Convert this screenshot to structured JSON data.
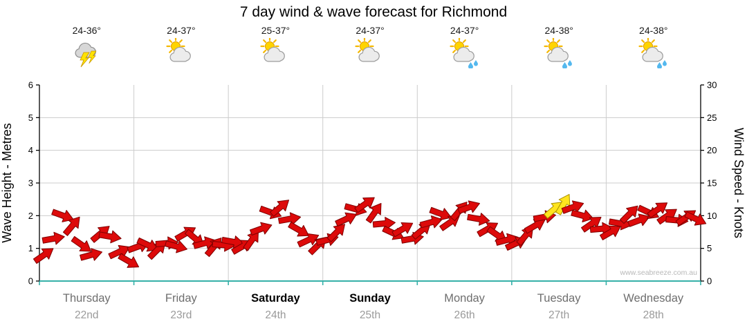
{
  "title": "7 day wind & wave forecast for Richmond",
  "watermark": "www.seabreeze.com.au",
  "colors": {
    "arrow_red": "#dd0a0a",
    "arrow_red_outline": "#7e0000",
    "arrow_yellow": "#ffe41e",
    "arrow_yellow_outline": "#a98f00",
    "grid": "#cccccc",
    "axis_black": "#000000",
    "axis_teal": "#35b0a8",
    "day_name_gray": "#6e6e6e",
    "weekend_black": "#000000",
    "date_gray": "#9a9a9a",
    "watermark_gray": "#b8b8b8"
  },
  "left_axis": {
    "label": "Wave Height - Metres",
    "ticks": [
      0,
      1,
      2,
      3,
      4,
      5,
      6
    ]
  },
  "right_axis": {
    "label": "Wind Speed - Knots",
    "ticks": [
      0,
      5,
      10,
      15,
      20,
      25,
      30
    ]
  },
  "days": [
    {
      "name": "Thursday",
      "date": "22nd",
      "temp": "24-36°",
      "icon": "thunderstorm",
      "weekend": false
    },
    {
      "name": "Friday",
      "date": "23rd",
      "temp": "24-37°",
      "icon": "sun-cloud",
      "weekend": false
    },
    {
      "name": "Saturday",
      "date": "24th",
      "temp": "25-37°",
      "icon": "sun-cloud",
      "weekend": true
    },
    {
      "name": "Sunday",
      "date": "25th",
      "temp": "24-37°",
      "icon": "sun-cloud",
      "weekend": true
    },
    {
      "name": "Monday",
      "date": "26th",
      "temp": "24-37°",
      "icon": "sun-cloud-rain",
      "weekend": false
    },
    {
      "name": "Tuesday",
      "date": "27th",
      "temp": "24-38°",
      "icon": "sun-cloud-rain",
      "weekend": false
    },
    {
      "name": "Wednesday",
      "date": "28th",
      "temp": "24-38°",
      "icon": "sun-cloud-rain",
      "weekend": false
    }
  ],
  "chart_data": {
    "type": "line",
    "subtype": "wind-direction-arrows",
    "title": "7 day wind & wave forecast for Richmond",
    "x_categories": [
      "Thursday 22nd",
      "Friday 23rd",
      "Saturday 24th",
      "Sunday 25th",
      "Monday 26th",
      "Tuesday 27th",
      "Wednesday 28th"
    ],
    "y_left": {
      "label": "Wave Height - Metres",
      "min": 0,
      "max": 6,
      "ticks": [
        0,
        1,
        2,
        3,
        4,
        5,
        6
      ]
    },
    "y_right": {
      "label": "Wind Speed - Knots",
      "min": 0,
      "max": 30,
      "ticks": [
        0,
        5,
        10,
        15,
        20,
        25,
        30
      ]
    },
    "grid": true,
    "days": [
      {
        "day": "Thursday",
        "wind_knots": [
          4.0,
          6.5,
          10.0,
          8.5,
          5.5,
          4.0,
          7.3,
          6.8,
          4.5,
          3.0
        ],
        "dir_deg": [
          35,
          10,
          -20,
          50,
          -35,
          15,
          40,
          -10,
          25,
          -30
        ]
      },
      {
        "day": "Friday",
        "wind_knots": [
          5.3,
          5.5,
          4.8,
          5.8,
          5.3,
          7.3,
          6.5,
          5.8,
          5.3,
          5.5
        ],
        "dir_deg": [
          20,
          -25,
          45,
          5,
          -15,
          30,
          -40,
          15,
          50,
          -5
        ]
      },
      {
        "day": "Saturday",
        "wind_knots": [
          6.0,
          5.3,
          6.3,
          8.0,
          10.5,
          11.3,
          9.5,
          7.8,
          6.3,
          5.5
        ],
        "dir_deg": [
          -10,
          30,
          55,
          20,
          -20,
          40,
          10,
          -30,
          25,
          45
        ]
      },
      {
        "day": "Sunday",
        "wind_knots": [
          6.3,
          7.5,
          9.5,
          11.0,
          11.8,
          10.5,
          8.8,
          7.3,
          8.0,
          6.5
        ],
        "dir_deg": [
          15,
          45,
          25,
          -15,
          35,
          55,
          5,
          -25,
          30,
          10
        ]
      },
      {
        "day": "Monday",
        "wind_knots": [
          7.8,
          9.0,
          10.3,
          9.0,
          10.8,
          11.3,
          9.5,
          8.0,
          7.0,
          6.3
        ],
        "dir_deg": [
          40,
          15,
          -20,
          35,
          50,
          20,
          -10,
          30,
          -35,
          15
        ]
      },
      {
        "day": "Tuesday",
        "wind_knots": [
          5.8,
          7.0,
          8.5,
          9.8,
          11.0,
          11.8,
          11.3,
          10.0,
          8.8,
          8.0
        ],
        "dir_deg": [
          25,
          50,
          30,
          10,
          40,
          60,
          20,
          -15,
          35,
          5
        ]
      },
      {
        "day": "Wednesday",
        "wind_knots": [
          7.5,
          8.8,
          10.3,
          9.3,
          10.5,
          11.0,
          10.0,
          9.3,
          9.8,
          9.5
        ],
        "dir_deg": [
          30,
          -10,
          45,
          20,
          -25,
          35,
          35,
          -5,
          35,
          -25
        ]
      }
    ],
    "highlight_yellow_points": [
      [
        5,
        4
      ],
      [
        5,
        5
      ]
    ],
    "legend": "none"
  }
}
